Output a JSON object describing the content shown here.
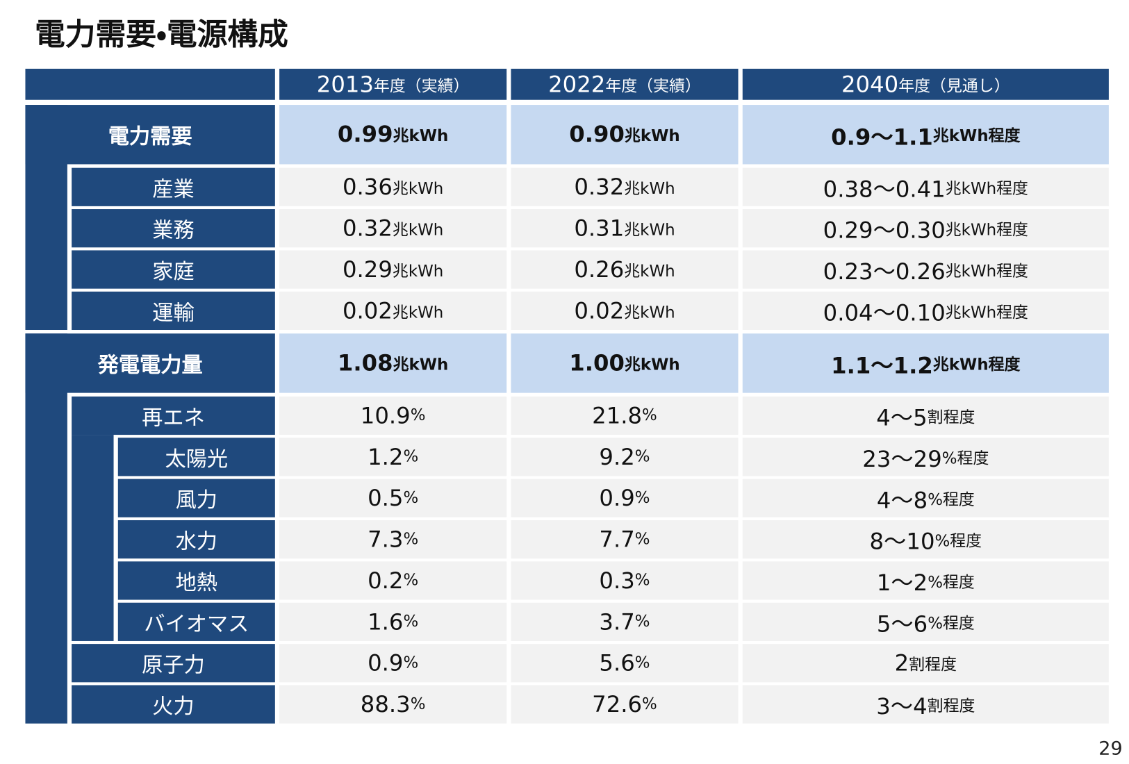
{
  "title": "電力需要・電源構成",
  "page_number": "29",
  "table": {
    "columns": [
      [
        "2013",
        "年度（実績）"
      ],
      [
        "2022",
        "年度（実績）"
      ],
      [
        "2040",
        "年度（見通し）"
      ]
    ],
    "sections": [
      {
        "label": "電力需要",
        "cells": [
          [
            "0.99",
            "兆kWh"
          ],
          [
            "0.90",
            "兆kWh"
          ],
          [
            "0.9～1.1",
            "兆kWh程度"
          ]
        ],
        "items": [
          {
            "label": "産業",
            "cells": [
              [
                "0.36",
                "兆kWh"
              ],
              [
                "0.32",
                "兆kWh"
              ],
              [
                "0.38～0.41",
                "兆kWh程度"
              ]
            ]
          },
          {
            "label": "業務",
            "cells": [
              [
                "0.32",
                "兆kWh"
              ],
              [
                "0.31",
                "兆kWh"
              ],
              [
                "0.29～0.30",
                "兆kWh程度"
              ]
            ]
          },
          {
            "label": "家庭",
            "cells": [
              [
                "0.29",
                "兆kWh"
              ],
              [
                "0.26",
                "兆kWh"
              ],
              [
                "0.23～0.26",
                "兆kWh程度"
              ]
            ]
          },
          {
            "label": "運輸",
            "cells": [
              [
                "0.02",
                "兆kWh"
              ],
              [
                "0.02",
                "兆kWh"
              ],
              [
                "0.04～0.10",
                "兆kWh程度"
              ]
            ]
          }
        ]
      },
      {
        "label": "発電電力量",
        "cells": [
          [
            "1.08",
            "兆kWh"
          ],
          [
            "1.00",
            "兆kWh"
          ],
          [
            "1.1～1.2",
            "兆kWh程度"
          ]
        ],
        "items": [
          {
            "label": "再エネ",
            "cells": [
              [
                "10.9",
                "%"
              ],
              [
                "21.8",
                "%"
              ],
              [
                "4～5",
                "割程度"
              ]
            ],
            "items": [
              {
                "label": "太陽光",
                "cells": [
                  [
                    "1.2",
                    "%"
                  ],
                  [
                    "9.2",
                    "%"
                  ],
                  [
                    "23～29",
                    "%程度"
                  ]
                ]
              },
              {
                "label": "風力",
                "cells": [
                  [
                    "0.5",
                    "%"
                  ],
                  [
                    "0.9",
                    "%"
                  ],
                  [
                    "4～8",
                    "%程度"
                  ]
                ]
              },
              {
                "label": "水力",
                "cells": [
                  [
                    "7.3",
                    "%"
                  ],
                  [
                    "7.7",
                    "%"
                  ],
                  [
                    "8～10",
                    "%程度"
                  ]
                ]
              },
              {
                "label": "地熱",
                "cells": [
                  [
                    "0.2",
                    "%"
                  ],
                  [
                    "0.3",
                    "%"
                  ],
                  [
                    "1～2",
                    "%程度"
                  ]
                ]
              },
              {
                "label": "バイオマス",
                "cells": [
                  [
                    "1.6",
                    "%"
                  ],
                  [
                    "3.7",
                    "%"
                  ],
                  [
                    "5～6",
                    "%程度"
                  ]
                ]
              }
            ]
          },
          {
            "label": "原子力",
            "cells": [
              [
                "0.9",
                "%"
              ],
              [
                "5.6",
                "%"
              ],
              [
                "2",
                "割程度"
              ]
            ]
          },
          {
            "label": "火力",
            "cells": [
              [
                "88.3",
                "%"
              ],
              [
                "72.6",
                "%"
              ],
              [
                "3～4",
                "割程度"
              ]
            ]
          }
        ]
      }
    ]
  }
}
